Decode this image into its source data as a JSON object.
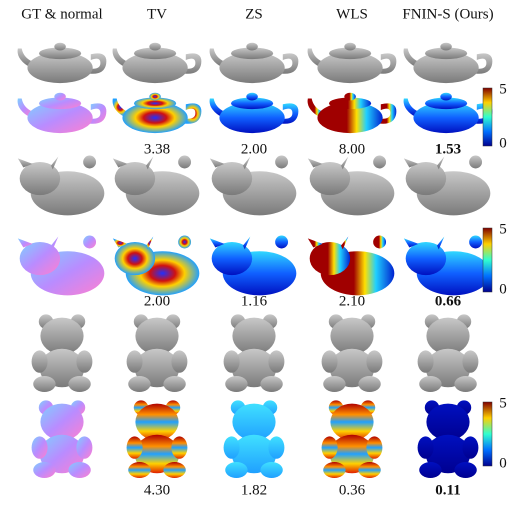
{
  "header": {
    "columns": [
      "GT & normal",
      "TV",
      "ZS",
      "WLS",
      "FNIN-S (Ours)"
    ]
  },
  "rows": [
    {
      "errors": [
        "3.38",
        "2.00",
        "8.00",
        "1.53"
      ],
      "colorbar": [
        "5",
        "0"
      ]
    },
    {
      "errors": [
        "2.00",
        "1.16",
        "2.10",
        "0.66"
      ],
      "colorbar": [
        "5",
        "0"
      ]
    },
    {
      "errors": [
        "4.30",
        "1.82",
        "0.36",
        "0.11"
      ],
      "colorbar": [
        "5",
        "0"
      ]
    }
  ]
}
